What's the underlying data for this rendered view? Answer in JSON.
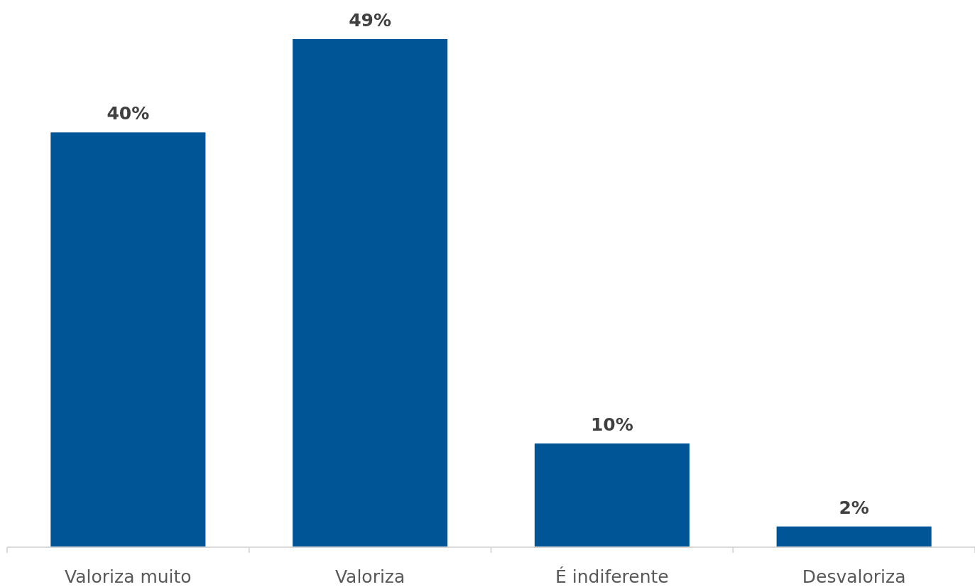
{
  "chart_data": {
    "type": "bar",
    "categories": [
      "Valoriza muito",
      "Valoriza",
      "É indiferente",
      "Desvaloriza"
    ],
    "values": [
      40,
      49,
      10,
      2
    ],
    "value_labels": [
      "40%",
      "49%",
      "10%",
      "2%"
    ],
    "color": "#005596"
  }
}
